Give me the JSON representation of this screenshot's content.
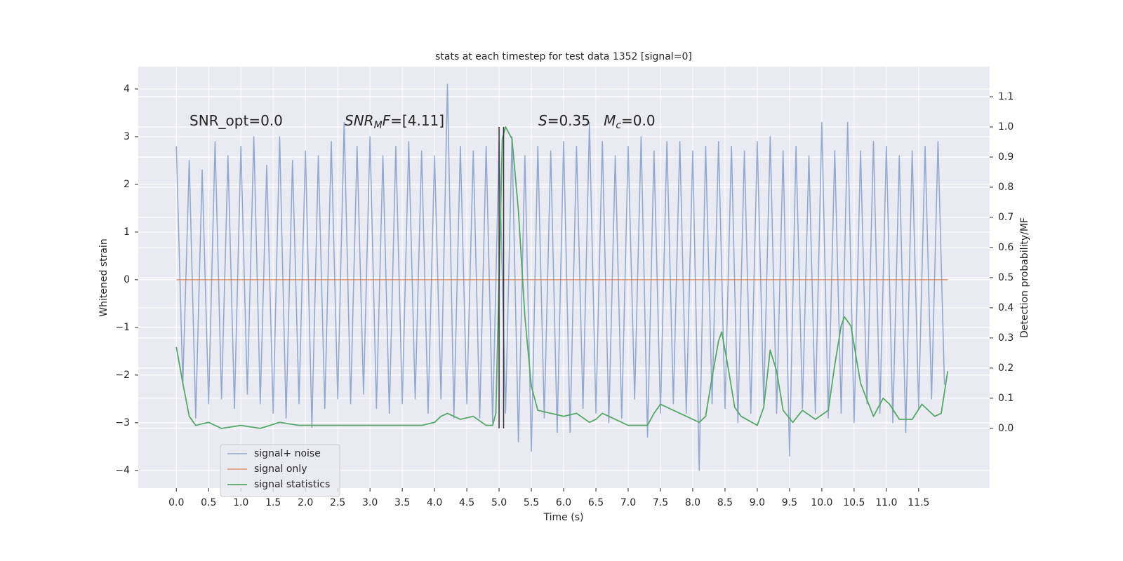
{
  "chart_data": {
    "type": "line",
    "title": "stats at each timestep for test data 1352 [signal=0]",
    "x_label": "Time (s)",
    "y_label": "Whitened strain",
    "y2_label": "Detection probability/MF",
    "xlim": [
      -0.59,
      12.6
    ],
    "ylim": [
      -4.37,
      4.47
    ],
    "y2lim": [
      -0.198,
      1.2
    ],
    "xticks": [
      {
        "value": 0,
        "label": "0.0"
      },
      {
        "value": 0.5,
        "label": "0.5"
      },
      {
        "value": 1,
        "label": "1.0"
      },
      {
        "value": 1.5,
        "label": "1.5"
      },
      {
        "value": 2,
        "label": "2.0"
      },
      {
        "value": 2.5,
        "label": "2.5"
      },
      {
        "value": 3,
        "label": "3.0"
      },
      {
        "value": 3.5,
        "label": "3.5"
      },
      {
        "value": 4,
        "label": "4.0"
      },
      {
        "value": 4.5,
        "label": "4.5"
      },
      {
        "value": 5,
        "label": "5.0"
      },
      {
        "value": 5.5,
        "label": "5.5"
      },
      {
        "value": 6,
        "label": "6.0"
      },
      {
        "value": 6.5,
        "label": "6.5"
      },
      {
        "value": 7,
        "label": "7.0"
      },
      {
        "value": 7.5,
        "label": "7.5"
      },
      {
        "value": 8,
        "label": "8.0"
      },
      {
        "value": 8.5,
        "label": "8.5"
      },
      {
        "value": 9,
        "label": "9.0"
      },
      {
        "value": 9.5,
        "label": "9.5"
      },
      {
        "value": 10,
        "label": "10.0"
      },
      {
        "value": 10.5,
        "label": "10.5"
      },
      {
        "value": 11,
        "label": "11.0"
      },
      {
        "value": 11.5,
        "label": "11.5"
      }
    ],
    "yticks": [
      {
        "value": -4,
        "label": "−4"
      },
      {
        "value": -3,
        "label": "−3"
      },
      {
        "value": -2,
        "label": "−2"
      },
      {
        "value": -1,
        "label": "−1"
      },
      0,
      1,
      2,
      3,
      4
    ],
    "y2ticks": [
      {
        "value": 0,
        "label": "0.0"
      },
      {
        "value": 0.1,
        "label": "0.1"
      },
      {
        "value": 0.2,
        "label": "0.2"
      },
      {
        "value": 0.3,
        "label": "0.3"
      },
      {
        "value": 0.4,
        "label": "0.4"
      },
      {
        "value": 0.5,
        "label": "0.5"
      },
      {
        "value": 0.6,
        "label": "0.6"
      },
      {
        "value": 0.7,
        "label": "0.7"
      },
      {
        "value": 0.8,
        "label": "0.8"
      },
      {
        "value": 0.9,
        "label": "0.9"
      },
      {
        "value": 1,
        "label": "1.0"
      },
      {
        "value": 1.1,
        "label": "1.1"
      }
    ],
    "grid": true,
    "legend": "lower left",
    "series": [
      {
        "name": "signal+ noise",
        "color": "#4c72b0",
        "axis": "y",
        "x": [
          0,
          0.1,
          0.2,
          0.3,
          0.4,
          0.5,
          0.6,
          0.7,
          0.8,
          0.9,
          1,
          1.1,
          1.2,
          1.3,
          1.4,
          1.5,
          1.6,
          1.7,
          1.8,
          1.9,
          2,
          2.1,
          2.2,
          2.3,
          2.4,
          2.5,
          2.6,
          2.7,
          2.8,
          2.9,
          3,
          3.1,
          3.2,
          3.3,
          3.4,
          3.5,
          3.6,
          3.7,
          3.8,
          3.9,
          4,
          4.1,
          4.2,
          4.3,
          4.4,
          4.5,
          4.6,
          4.7,
          4.8,
          4.9,
          5,
          5.1,
          5.2,
          5.3,
          5.4,
          5.5,
          5.6,
          5.7,
          5.8,
          5.9,
          6,
          6.1,
          6.2,
          6.3,
          6.4,
          6.5,
          6.6,
          6.7,
          6.8,
          6.9,
          7,
          7.1,
          7.2,
          7.3,
          7.4,
          7.5,
          7.6,
          7.7,
          7.8,
          7.9,
          8,
          8.1,
          8.2,
          8.3,
          8.4,
          8.5,
          8.6,
          8.7,
          8.8,
          8.9,
          9,
          9.1,
          9.2,
          9.3,
          9.4,
          9.5,
          9.6,
          9.7,
          9.8,
          9.9,
          10,
          10.1,
          10.2,
          10.3,
          10.4,
          10.5,
          10.6,
          10.7,
          10.8,
          10.9,
          11,
          11.1,
          11.2,
          11.3,
          11.4,
          11.5,
          11.6,
          11.7,
          11.8,
          11.9
        ],
        "values": [
          2.8,
          -2.2,
          2.5,
          -2.9,
          2.3,
          -2.6,
          2.9,
          -2.5,
          2.6,
          -2.7,
          2.8,
          -2.4,
          3.0,
          -2.6,
          2.4,
          -2.8,
          3.0,
          -2.9,
          2.5,
          -2.6,
          2.7,
          -3.1,
          2.6,
          -2.7,
          2.9,
          -2.5,
          3.3,
          -2.6,
          2.8,
          -2.4,
          3.0,
          -2.7,
          2.6,
          -2.8,
          2.8,
          -2.6,
          2.9,
          -2.5,
          2.7,
          -2.8,
          2.6,
          -2.5,
          4.1,
          -2.9,
          2.8,
          -2.6,
          2.7,
          -2.9,
          2.8,
          -3.0,
          2.9,
          -2.8,
          3.0,
          -3.4,
          2.6,
          -3.6,
          2.8,
          -2.9,
          2.7,
          -3.2,
          2.9,
          -3.2,
          2.8,
          -2.7,
          3.3,
          -2.8,
          2.9,
          -3.0,
          2.6,
          -2.9,
          2.8,
          -2.5,
          3.0,
          -3.3,
          2.7,
          -2.8,
          2.9,
          -2.6,
          2.9,
          -2.8,
          2.7,
          -4.0,
          2.8,
          -2.6,
          2.9,
          -2.7,
          2.8,
          -3.0,
          2.7,
          -2.8,
          2.9,
          -2.6,
          3.0,
          -2.8,
          2.7,
          -3.7,
          2.8,
          -2.7,
          2.6,
          -2.8,
          3.3,
          -2.9,
          2.7,
          -2.8,
          3.3,
          -3.0,
          2.7,
          -2.6,
          2.9,
          -2.8,
          2.8,
          -3.0,
          2.6,
          -3.2,
          2.7,
          -2.7,
          2.8,
          -2.5,
          2.9,
          -2.2
        ]
      },
      {
        "name": "signal only",
        "color": "#dd8452",
        "axis": "y",
        "x": [
          0,
          11.95
        ],
        "values": [
          0,
          0
        ]
      },
      {
        "name": "signal statistics",
        "color": "#55a868",
        "axis": "y2",
        "x": [
          0,
          0.1,
          0.2,
          0.3,
          0.5,
          0.7,
          1,
          1.3,
          1.6,
          1.9,
          2.2,
          2.6,
          3,
          3.4,
          3.8,
          4,
          4.1,
          4.2,
          4.4,
          4.6,
          4.8,
          4.9,
          4.95,
          5,
          5.05,
          5.1,
          5.2,
          5.3,
          5.4,
          5.5,
          5.6,
          5.8,
          6,
          6.2,
          6.4,
          6.5,
          6.6,
          6.8,
          7,
          7.3,
          7.4,
          7.5,
          7.7,
          8,
          8.1,
          8.2,
          8.3,
          8.4,
          8.45,
          8.55,
          8.65,
          8.75,
          9,
          9.1,
          9.2,
          9.3,
          9.4,
          9.55,
          9.7,
          9.9,
          10.1,
          10.2,
          10.3,
          10.35,
          10.45,
          10.6,
          10.8,
          10.95,
          11.05,
          11.2,
          11.4,
          11.55,
          11.75,
          11.85,
          11.95
        ],
        "values": [
          0.27,
          0.15,
          0.04,
          0.01,
          0.02,
          0,
          0.01,
          0,
          0.02,
          0.01,
          0.01,
          0.01,
          0.01,
          0.01,
          0.01,
          0.02,
          0.04,
          0.05,
          0.03,
          0.04,
          0.01,
          0.01,
          0.05,
          0.49,
          0.96,
          1.0,
          0.96,
          0.72,
          0.37,
          0.14,
          0.06,
          0.05,
          0.04,
          0.05,
          0.02,
          0.03,
          0.05,
          0.03,
          0.01,
          0.01,
          0.05,
          0.08,
          0.06,
          0.03,
          0.02,
          0.04,
          0.17,
          0.29,
          0.32,
          0.2,
          0.07,
          0.04,
          0.01,
          0.07,
          0.26,
          0.19,
          0.06,
          0.02,
          0.06,
          0.03,
          0.06,
          0.21,
          0.34,
          0.37,
          0.34,
          0.15,
          0.04,
          0.1,
          0.08,
          0.03,
          0.03,
          0.08,
          0.04,
          0.05,
          0.19
        ]
      }
    ],
    "vlines": {
      "color": "#333333",
      "axis": "y2",
      "x": [
        5.0,
        5.07
      ],
      "values": [
        0,
        1
      ]
    },
    "annotations": [
      [
        {
          "t": "SNR_opt=0.0"
        }
      ],
      [
        {
          "t": "SNR",
          "italic": true
        },
        {
          "t": "M",
          "italic": true,
          "sub": true
        },
        {
          "t": "F",
          "italic": true
        },
        {
          "t": "=[4.11]"
        }
      ],
      [
        {
          "t": "S",
          "italic": true
        },
        {
          "t": "=0.35   "
        },
        {
          "t": "M",
          "italic": true
        },
        {
          "t": "c",
          "italic": true,
          "sub": true
        },
        {
          "t": "=0.0"
        }
      ]
    ]
  }
}
